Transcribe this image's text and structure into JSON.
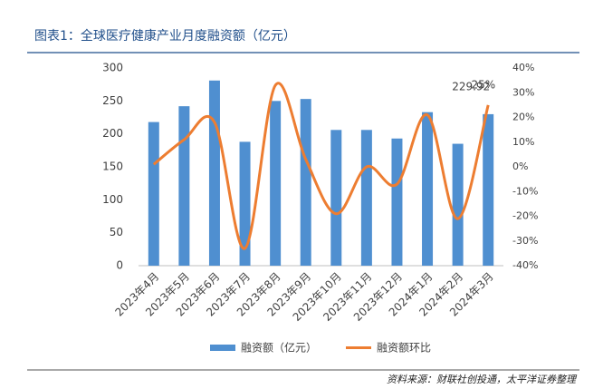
{
  "chart_data": {
    "type": "bar_line",
    "title": "图表1：全球医疗健康产业月度融资额（亿元）",
    "source": "资料来源：财联社创投通，太平洋证券整理",
    "categories": [
      "2023年4月",
      "2023年5月",
      "2023年6月",
      "2023年7月",
      "2023年8月",
      "2023年9月",
      "2023年10月",
      "2023年11月",
      "2023年12月",
      "2024年1月",
      "2024年2月",
      "2024年3月"
    ],
    "series": [
      {
        "name": "融资额（亿元）",
        "type": "bar",
        "color": "#4f8fd0",
        "values": [
          218,
          242,
          281,
          188,
          250,
          253,
          206,
          206,
          193,
          233,
          185,
          229.92
        ],
        "value_labels": [
          null,
          null,
          null,
          null,
          null,
          null,
          null,
          null,
          null,
          null,
          null,
          "229.92"
        ]
      },
      {
        "name": "融资额环比",
        "type": "line",
        "axis": "y2",
        "color": "#ed7d31",
        "values": [
          1,
          11,
          18,
          -33,
          33,
          3,
          -19,
          0,
          -7,
          21,
          -21,
          25
        ],
        "value_labels": [
          null,
          null,
          null,
          null,
          null,
          null,
          null,
          null,
          null,
          null,
          null,
          "25%"
        ]
      }
    ],
    "ylim": [
      0,
      300
    ],
    "yticks": [
      0,
      50,
      100,
      150,
      200,
      250,
      300
    ],
    "y2lim": [
      -40,
      40
    ],
    "y2ticks": [
      {
        "value": -40,
        "label": "-40%"
      },
      {
        "value": -30,
        "label": "-30%"
      },
      {
        "value": -20,
        "label": "-20%"
      },
      {
        "value": -10,
        "label": "-10%"
      },
      {
        "value": 0,
        "label": "0%"
      },
      {
        "value": 10,
        "label": "10%"
      },
      {
        "value": 20,
        "label": "20%"
      },
      {
        "value": 30,
        "label": "30%"
      },
      {
        "value": 40,
        "label": "40%"
      }
    ],
    "legend": "bottom"
  }
}
